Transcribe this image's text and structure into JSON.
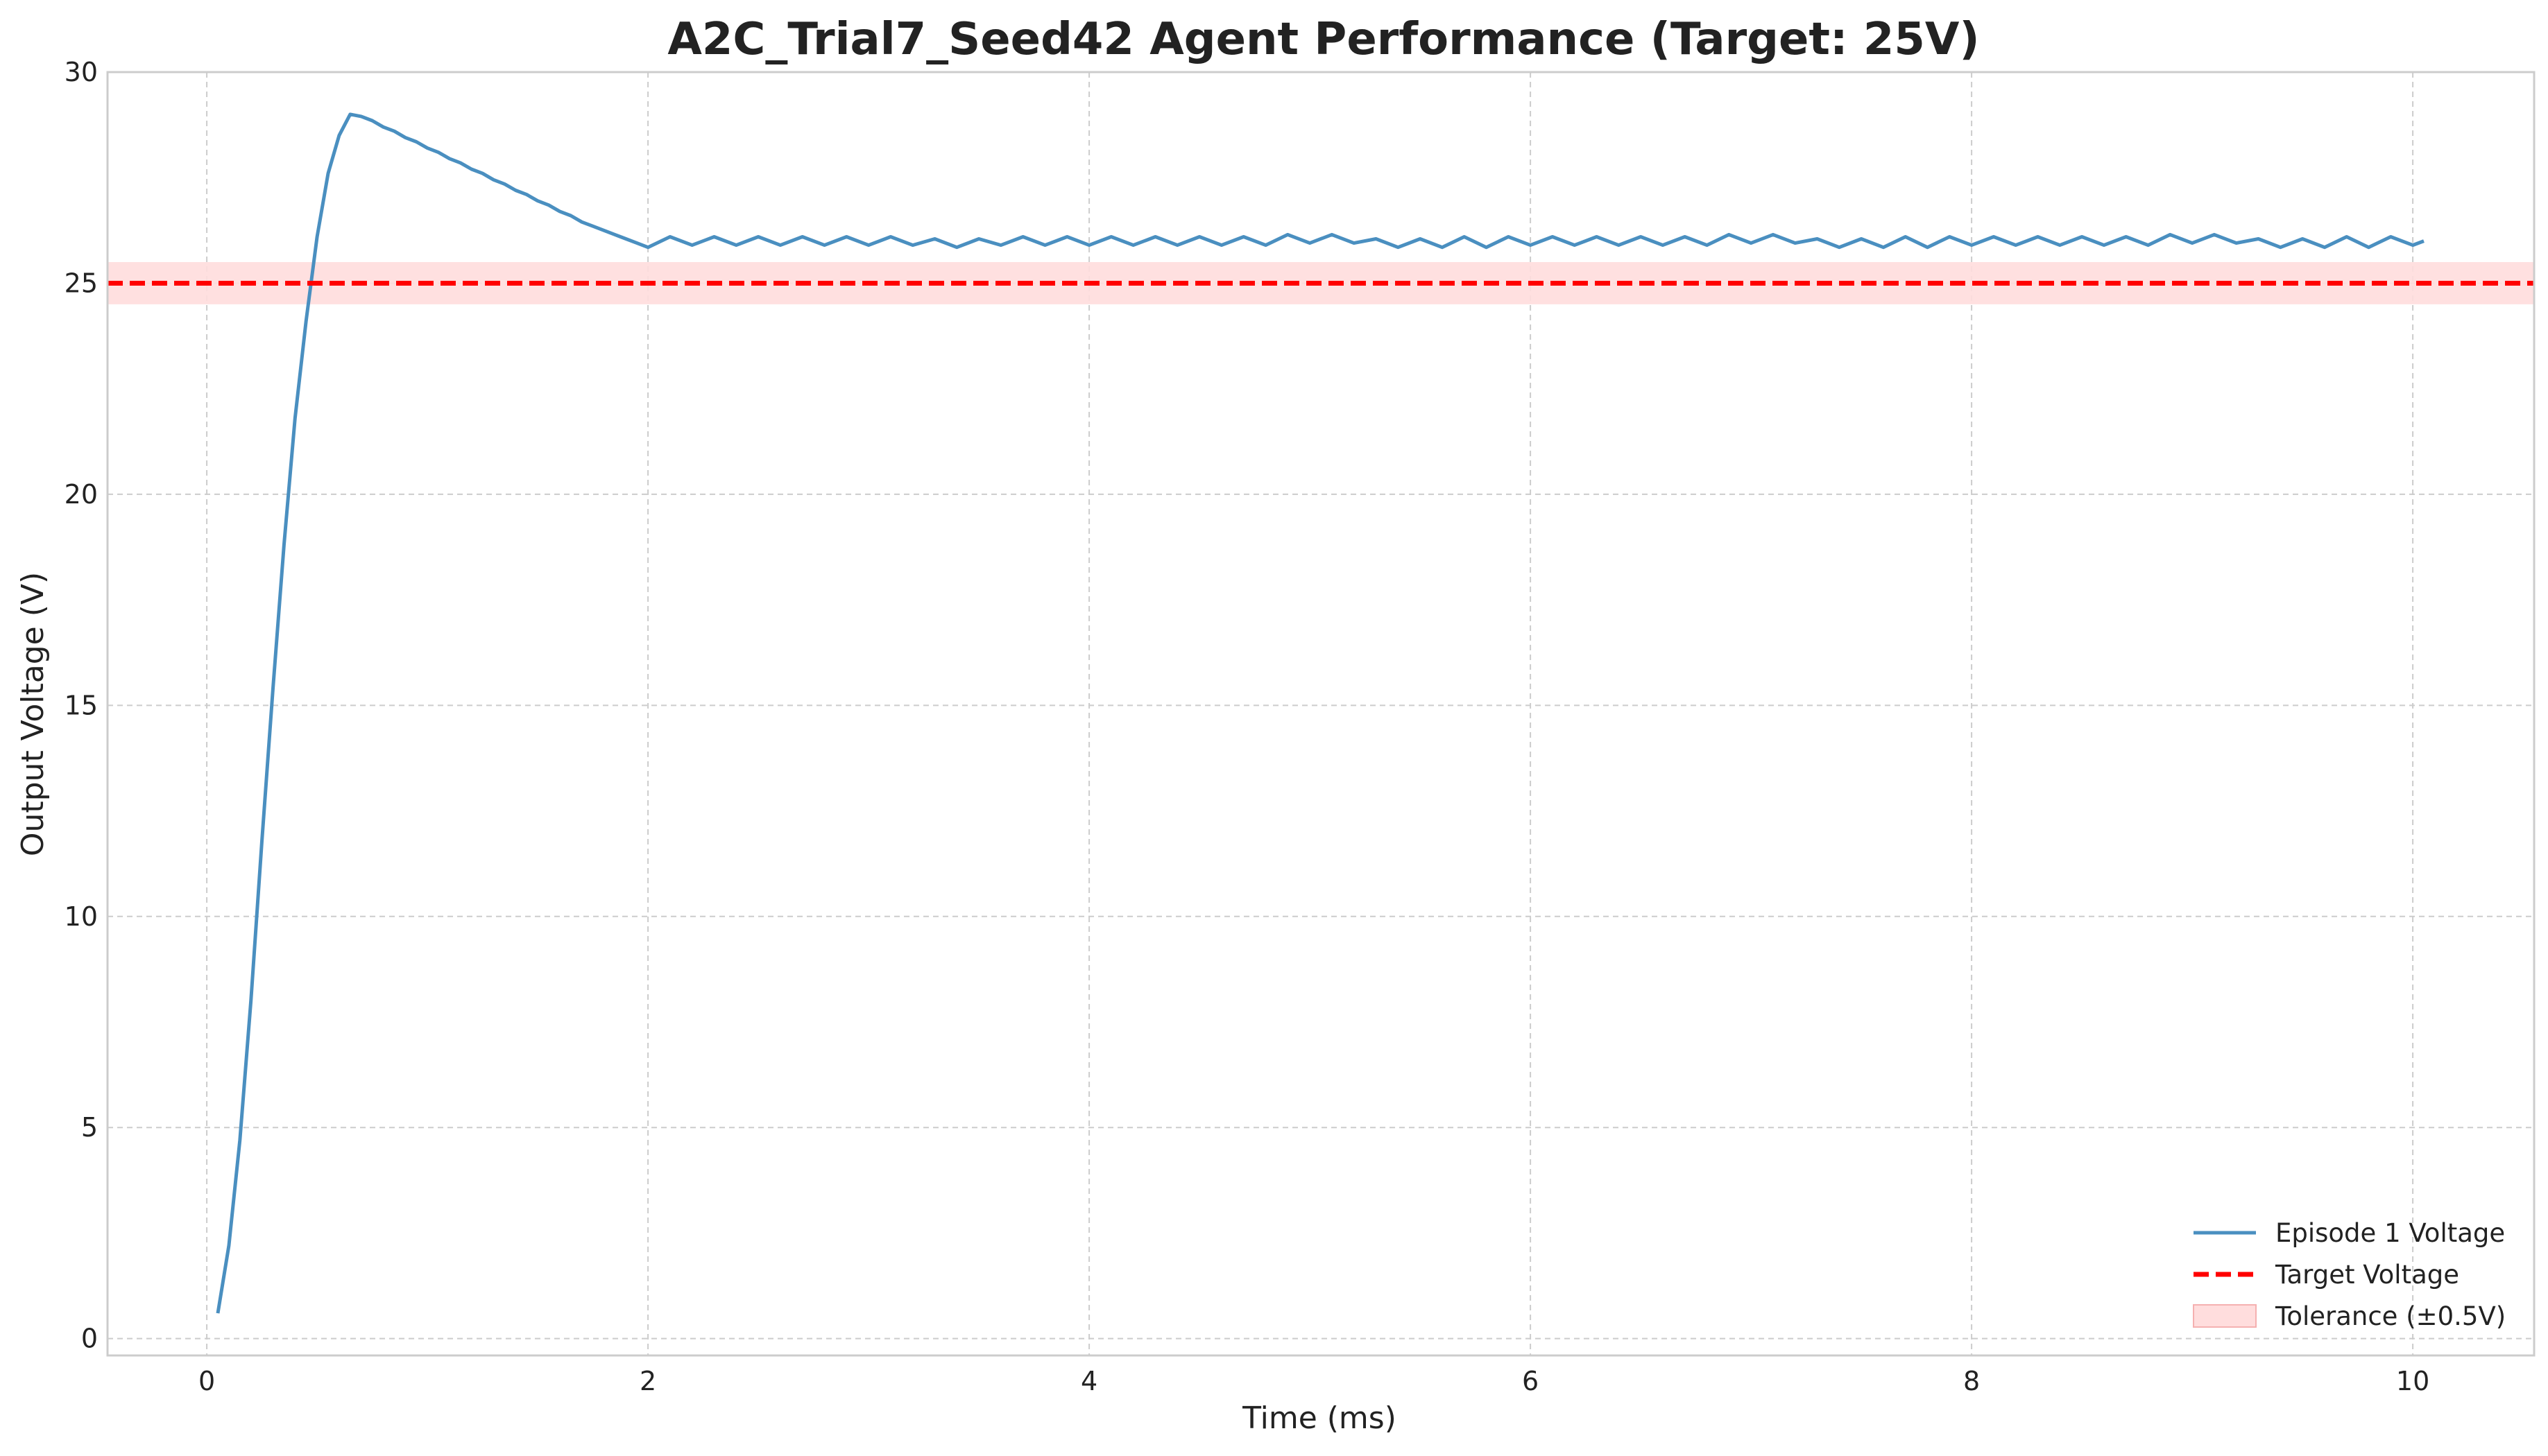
{
  "chart_data": {
    "type": "line",
    "title": "A2C_Trial7_Seed42 Agent Performance (Target: 25V)",
    "xlabel": "Time (ms)",
    "ylabel": "Output Voltage (V)",
    "xlim": [
      -0.45,
      10.55
    ],
    "ylim": [
      -0.4,
      30
    ],
    "xticks": [
      0,
      2,
      4,
      6,
      8,
      10
    ],
    "yticks": [
      0,
      5,
      10,
      15,
      20,
      25,
      30
    ],
    "grid": true,
    "legend_position": "bottom-right",
    "series": [
      {
        "name": "Episode 1 Voltage",
        "color": "#4a8fc0",
        "style": "solid",
        "x": [
          0.05,
          0.1,
          0.15,
          0.2,
          0.25,
          0.3,
          0.35,
          0.4,
          0.45,
          0.5,
          0.55,
          0.6,
          0.65,
          0.7,
          0.75,
          0.8,
          0.85,
          0.9,
          0.95,
          1.0,
          1.05,
          1.1,
          1.15,
          1.2,
          1.25,
          1.3,
          1.35,
          1.4,
          1.45,
          1.5,
          1.55,
          1.6,
          1.65,
          1.7,
          1.75,
          1.8,
          1.85,
          1.9,
          1.95,
          2.0,
          2.1,
          2.2,
          2.3,
          2.4,
          2.5,
          2.6,
          2.7,
          2.8,
          2.9,
          3.0,
          3.1,
          3.2,
          3.3,
          3.4,
          3.5,
          3.6,
          3.7,
          3.8,
          3.9,
          4.0,
          4.1,
          4.2,
          4.3,
          4.4,
          4.5,
          4.6,
          4.7,
          4.8,
          4.9,
          5.0,
          5.1,
          5.2,
          5.3,
          5.4,
          5.5,
          5.6,
          5.7,
          5.8,
          5.9,
          6.0,
          6.1,
          6.2,
          6.3,
          6.4,
          6.5,
          6.6,
          6.7,
          6.8,
          6.9,
          7.0,
          7.1,
          7.2,
          7.3,
          7.4,
          7.5,
          7.6,
          7.7,
          7.8,
          7.9,
          8.0,
          8.1,
          8.2,
          8.3,
          8.4,
          8.5,
          8.6,
          8.7,
          8.8,
          8.9,
          9.0,
          9.1,
          9.2,
          9.3,
          9.4,
          9.5,
          9.6,
          9.7,
          9.8,
          9.9,
          10.0,
          10.05
        ],
        "y": [
          0.6,
          2.2,
          4.7,
          8.0,
          11.8,
          15.4,
          18.8,
          21.8,
          24.1,
          26.1,
          27.6,
          28.5,
          29.0,
          28.95,
          28.85,
          28.7,
          28.6,
          28.45,
          28.35,
          28.2,
          28.1,
          27.95,
          27.85,
          27.7,
          27.6,
          27.45,
          27.35,
          27.2,
          27.1,
          26.95,
          26.85,
          26.7,
          26.6,
          26.45,
          26.35,
          26.25,
          26.15,
          26.05,
          25.95,
          25.85,
          26.1,
          25.9,
          26.1,
          25.9,
          26.1,
          25.9,
          26.1,
          25.9,
          26.1,
          25.9,
          26.1,
          25.9,
          26.05,
          25.85,
          26.05,
          25.9,
          26.1,
          25.9,
          26.1,
          25.9,
          26.1,
          25.9,
          26.1,
          25.9,
          26.1,
          25.9,
          26.1,
          25.9,
          26.15,
          25.95,
          26.15,
          25.95,
          26.05,
          25.85,
          26.05,
          25.85,
          26.1,
          25.85,
          26.1,
          25.9,
          26.1,
          25.9,
          26.1,
          25.9,
          26.1,
          25.9,
          26.1,
          25.9,
          26.15,
          25.95,
          26.15,
          25.95,
          26.05,
          25.85,
          26.05,
          25.85,
          26.1,
          25.85,
          26.1,
          25.9,
          26.1,
          25.9,
          26.1,
          25.9,
          26.1,
          25.9,
          26.1,
          25.9,
          26.15,
          25.95,
          26.15,
          25.95,
          26.05,
          25.85,
          26.05,
          25.85,
          26.1,
          25.85,
          26.1,
          25.9,
          26.0
        ]
      },
      {
        "name": "Target Voltage",
        "color": "#ff0000",
        "style": "dashed",
        "value": 25
      }
    ],
    "bands": [
      {
        "name": "Tolerance (±0.5V)",
        "color": "#ffdddd",
        "low": 24.5,
        "high": 25.5
      }
    ]
  }
}
